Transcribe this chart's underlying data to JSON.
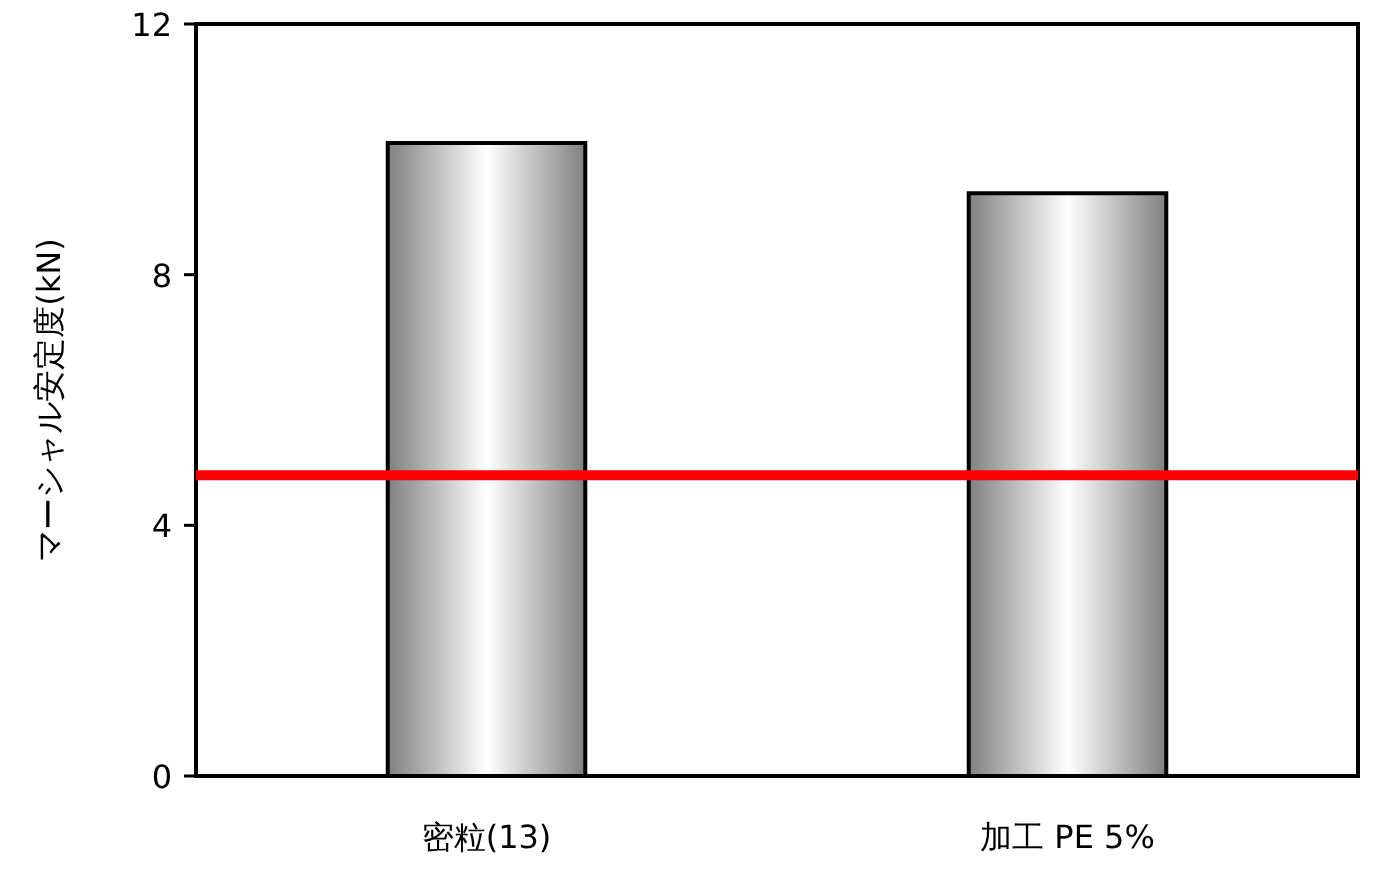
{
  "chart_data": {
    "type": "bar",
    "ylabel": "マーシャル安定度(kN)",
    "categories": [
      "密粒(13)",
      "加工 PE 5%"
    ],
    "values": [
      10.1,
      9.3
    ],
    "color": "#808080",
    "ylim": [
      0,
      12
    ],
    "yticks": [
      0,
      4,
      8,
      12
    ],
    "grid": false,
    "ref_lines": [
      {
        "axis": "y",
        "value": 4.8,
        "color": "#ff0000"
      }
    ]
  }
}
